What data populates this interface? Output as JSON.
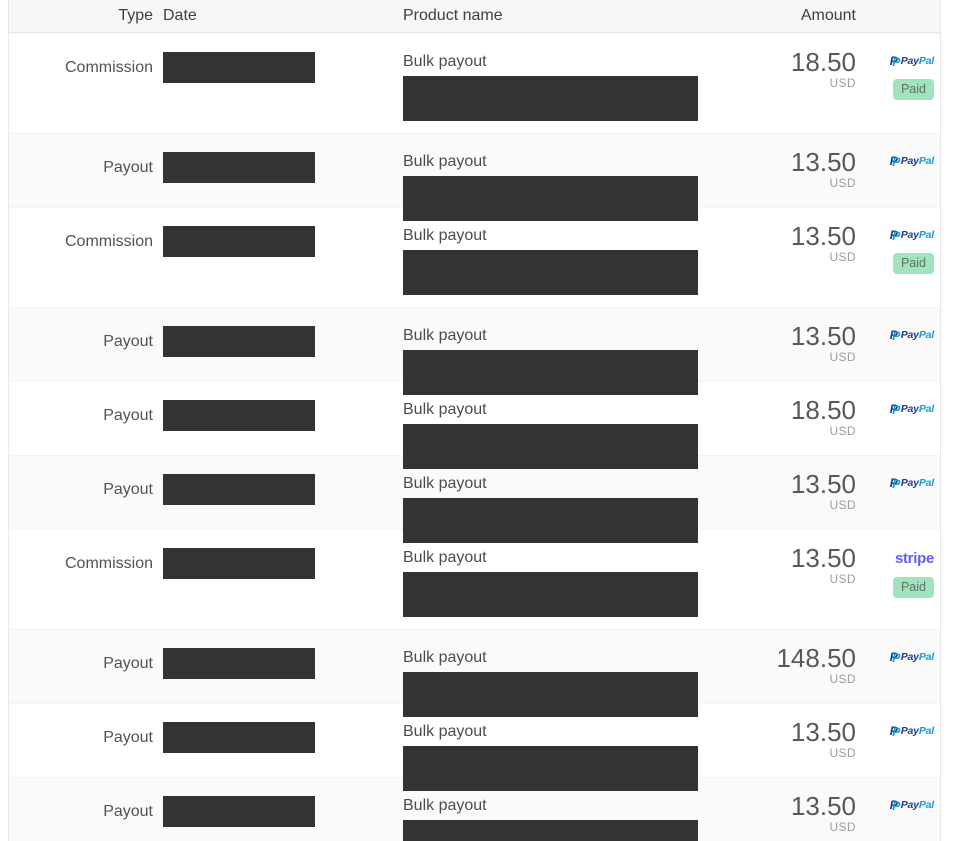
{
  "table": {
    "columns": {
      "type": "Type",
      "date": "Date",
      "product": "Product name",
      "amount": "Amount"
    },
    "product_title": "Bulk payout",
    "currency": "USD",
    "paid_label": "Paid",
    "stripe_label": "stripe",
    "paypal_logo": {
      "mark": "P",
      "pay": "Pay",
      "pal": "Pal"
    },
    "colors": {
      "paypal_navy": "#253b80",
      "paypal_blue": "#179bd7",
      "stripe_purple": "#635bff",
      "paid_badge_bg": "#a0e3bd",
      "paid_badge_text": "#5d7467",
      "redaction": "#333333",
      "alt_row_bg": "#fafafa",
      "header_bg": "#f7f7f8"
    },
    "rows": [
      {
        "type": "Commission",
        "amount": "18.50",
        "method": "paypal",
        "status": "Paid"
      },
      {
        "type": "Payout",
        "amount": "13.50",
        "method": "paypal",
        "status": null
      },
      {
        "type": "Commission",
        "amount": "13.50",
        "method": "paypal",
        "status": "Paid"
      },
      {
        "type": "Payout",
        "amount": "13.50",
        "method": "paypal",
        "status": null
      },
      {
        "type": "Payout",
        "amount": "18.50",
        "method": "paypal",
        "status": null
      },
      {
        "type": "Payout",
        "amount": "13.50",
        "method": "paypal",
        "status": null
      },
      {
        "type": "Commission",
        "amount": "13.50",
        "method": "stripe",
        "status": "Paid"
      },
      {
        "type": "Payout",
        "amount": "148.50",
        "method": "paypal",
        "status": null
      },
      {
        "type": "Payout",
        "amount": "13.50",
        "method": "paypal",
        "status": null
      },
      {
        "type": "Payout",
        "amount": "13.50",
        "method": "paypal",
        "status": null
      }
    ]
  }
}
